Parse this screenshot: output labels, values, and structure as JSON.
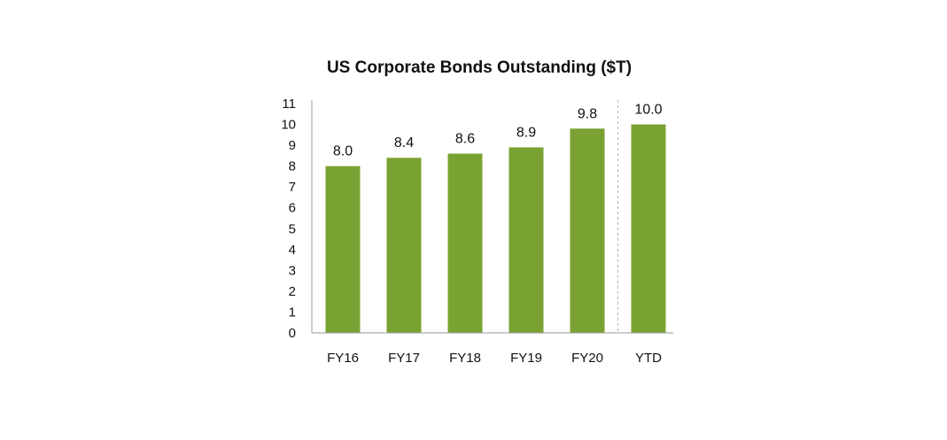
{
  "chart_data": {
    "type": "bar",
    "title": "US Corporate Bonds Outstanding ($T)",
    "categories": [
      "FY16",
      "FY17",
      "FY18",
      "FY19",
      "FY20",
      "YTD"
    ],
    "values": [
      8.0,
      8.4,
      8.6,
      8.9,
      9.8,
      10.0
    ],
    "data_labels": [
      "8.0",
      "8.4",
      "8.6",
      "8.9",
      "9.8",
      "10.0"
    ],
    "y_ticks": [
      "0",
      "1",
      "2",
      "3",
      "4",
      "5",
      "6",
      "7",
      "8",
      "9",
      "10",
      "11"
    ],
    "ylim": [
      0,
      11
    ],
    "xlabel": "",
    "ylabel": "",
    "grid": false,
    "legend": "none",
    "divider_before_category": "YTD",
    "colors": {
      "bar": "#7aa232",
      "axis": "#9a9a9a",
      "divider": "#b5b5b5",
      "text": "#111111"
    }
  }
}
